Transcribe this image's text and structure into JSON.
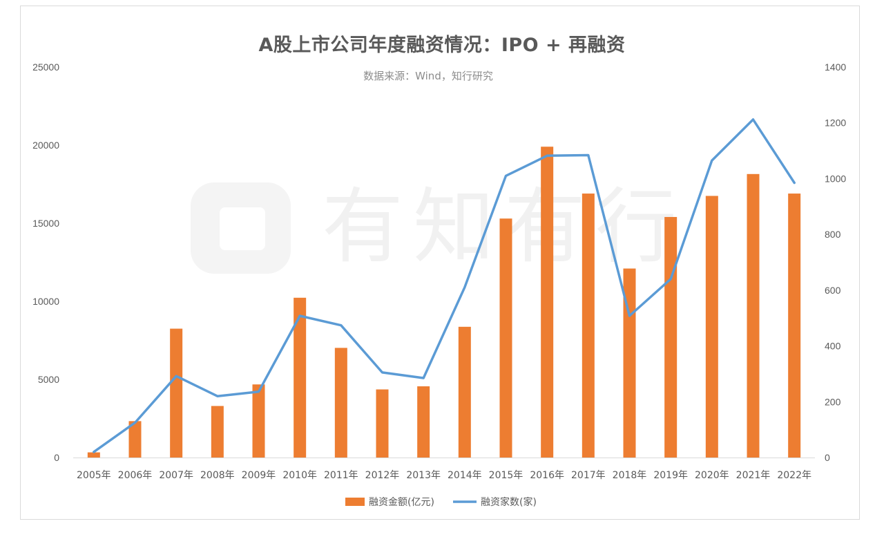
{
  "title": "A股上市公司年度融资情况：IPO + 再融资",
  "subtitle": "数据来源：Wind，知行研究",
  "watermark": "有知有行",
  "colors": {
    "bar": "#ed7d31",
    "line": "#5b9bd5",
    "axis_text": "#595959",
    "axis_line": "#d9d9d9"
  },
  "chart_data": {
    "type": "bar",
    "categories": [
      "2005年",
      "2006年",
      "2007年",
      "2008年",
      "2009年",
      "2010年",
      "2011年",
      "2012年",
      "2013年",
      "2014年",
      "2015年",
      "2016年",
      "2017年",
      "2018年",
      "2019年",
      "2020年",
      "2021年",
      "2022年"
    ],
    "series": [
      {
        "name": "融资金额(亿元)",
        "type": "bar",
        "axis": "left",
        "values": [
          330,
          2330,
          8250,
          3300,
          4680,
          10230,
          7020,
          4360,
          4560,
          8370,
          15300,
          19900,
          16900,
          12100,
          15400,
          16750,
          18150,
          16900
        ]
      },
      {
        "name": "融资家数(家)",
        "type": "line",
        "axis": "right",
        "values": [
          20,
          125,
          292,
          220,
          236,
          508,
          474,
          305,
          285,
          610,
          1010,
          1082,
          1084,
          508,
          640,
          1065,
          1212,
          985
        ]
      }
    ],
    "y_left": {
      "min": 0,
      "max": 25000,
      "ticks": [
        "0",
        "5000",
        "10000",
        "15000",
        "20000",
        "25000"
      ]
    },
    "y_right": {
      "min": 0,
      "max": 1400,
      "ticks": [
        "0",
        "200",
        "400",
        "600",
        "800",
        "1000",
        "1200",
        "1400"
      ]
    },
    "gridlines": false,
    "legend_position": "bottom"
  }
}
